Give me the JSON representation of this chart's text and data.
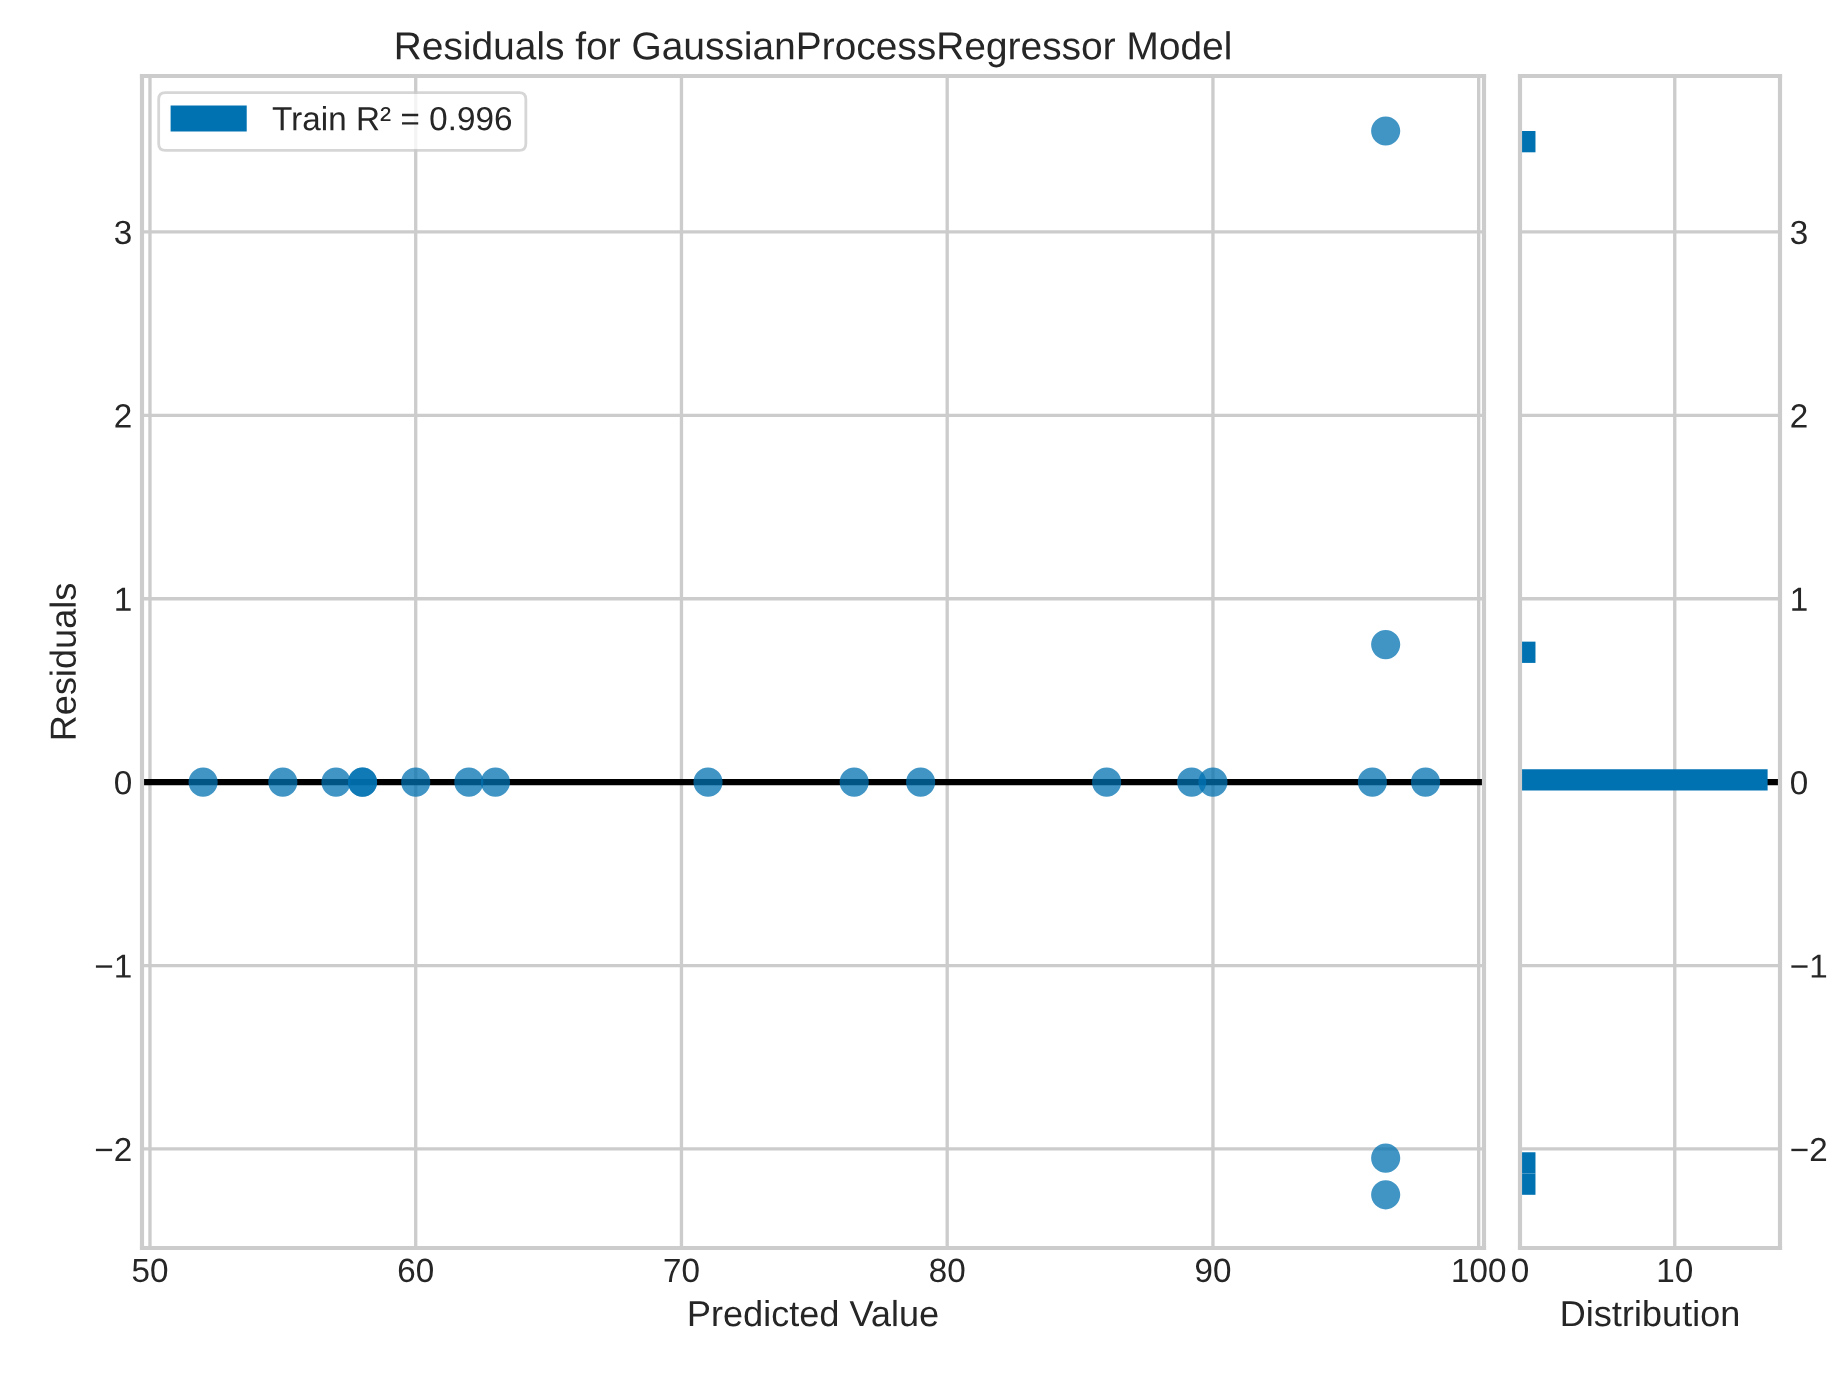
{
  "chart_data": [
    {
      "type": "scatter",
      "title": "Residuals for GaussianProcessRegressor Model",
      "xlabel": "Predicted Value",
      "ylabel": "Residuals",
      "series": [
        {
          "name": "Train R² = 0.996",
          "color": "#0072b2",
          "x": [
            52,
            55,
            57,
            58,
            58,
            60,
            62,
            63,
            71,
            76.5,
            79,
            86,
            89.2,
            90,
            96,
            98,
            96.5,
            96.5,
            96.5,
            96.5
          ],
          "values": [
            0,
            0,
            0,
            0,
            0,
            0,
            0,
            0,
            0,
            0,
            0,
            0,
            0,
            0,
            0,
            0,
            3.55,
            0.75,
            -2.05,
            -2.25
          ]
        }
      ],
      "xlim": [
        49.7,
        100.2
      ],
      "xticks": [
        50,
        60,
        70,
        80,
        90,
        100
      ],
      "ylim": [
        -2.54,
        3.85
      ],
      "yticks": [
        -2,
        -1,
        0,
        1,
        2,
        3
      ],
      "ref_lines": [
        {
          "axis": "y",
          "value": 0,
          "color": "#000000"
        }
      ],
      "grid": true,
      "legend": "top left",
      "marker": "circle"
    },
    {
      "type": "histogram",
      "orientation": "horizontal",
      "xlabel": "Distribution",
      "color": "#0072b2",
      "bins": [
        -2.25,
        -2.134,
        -2.018,
        -1.902,
        -1.786,
        -1.67,
        -1.554,
        -1.438,
        -1.322,
        -1.206,
        -1.09,
        -0.974,
        -0.858,
        -0.742,
        -0.626,
        -0.51,
        -0.394,
        -0.278,
        -0.162,
        -0.046,
        0.07,
        0.186,
        0.302,
        0.418,
        0.534,
        0.65,
        0.766,
        0.882,
        0.998,
        1.114,
        1.23,
        1.346,
        1.462,
        1.578,
        1.694,
        1.81,
        1.926,
        2.042,
        2.158,
        2.274,
        2.39,
        2.506,
        2.622,
        2.738,
        2.854,
        2.97,
        3.086,
        3.202,
        3.318,
        3.434,
        3.55
      ],
      "values": [
        1,
        1,
        0,
        0,
        0,
        0,
        0,
        0,
        0,
        0,
        0,
        0,
        0,
        0,
        0,
        0,
        0,
        0,
        0,
        16,
        0,
        0,
        0,
        0,
        0,
        1,
        0,
        0,
        0,
        0,
        0,
        0,
        0,
        0,
        0,
        0,
        0,
        0,
        0,
        0,
        0,
        0,
        0,
        0,
        0,
        0,
        0,
        0,
        0,
        1
      ],
      "xlim": [
        0,
        16.8
      ],
      "xticks": [
        0,
        10
      ],
      "ylim": [
        -2.54,
        3.85
      ],
      "yticks": [
        -2,
        -1,
        0,
        1,
        2,
        3
      ],
      "ref_lines": [
        {
          "axis": "y",
          "value": 0,
          "color": "#000000"
        }
      ],
      "grid": true
    }
  ]
}
